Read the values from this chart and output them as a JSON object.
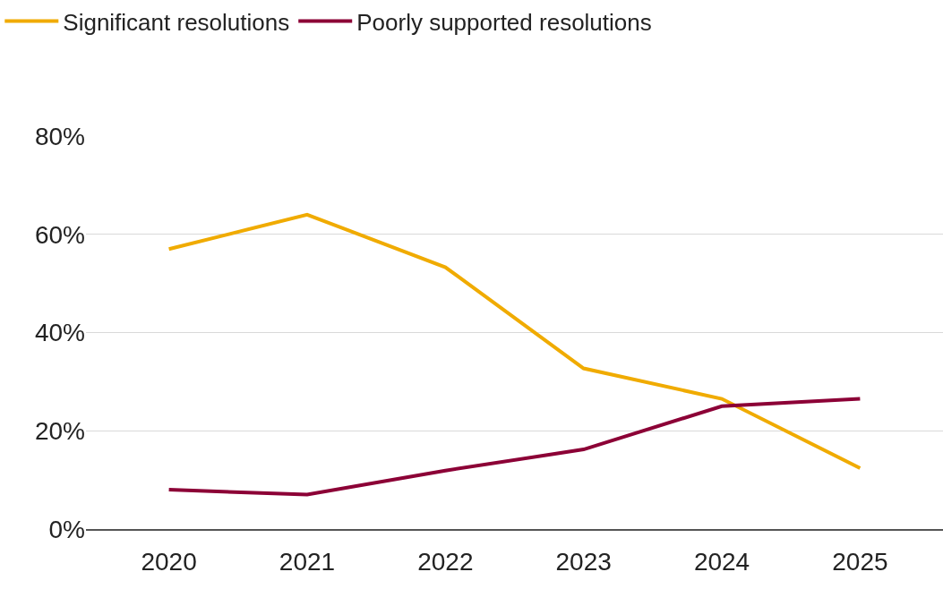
{
  "chart_data": {
    "type": "line",
    "categories": [
      "2020",
      "2021",
      "2022",
      "2023",
      "2024",
      "2025"
    ],
    "series": [
      {
        "name": "Significant resolutions",
        "color": "#f0ab00",
        "values": [
          57,
          64,
          53.3,
          32.7,
          26.5,
          12.4
        ]
      },
      {
        "name": "Poorly supported resolutions",
        "color": "#8c0036",
        "values": [
          8,
          7,
          11.9,
          16.2,
          25,
          26.5
        ]
      }
    ],
    "ylim": [
      0,
      80
    ],
    "yticks": [
      {
        "value": 0,
        "label": "0%"
      },
      {
        "value": 20,
        "label": "20%"
      },
      {
        "value": 40,
        "label": "40%"
      },
      {
        "value": 60,
        "label": "60%"
      },
      {
        "value": 80,
        "label": "80%"
      }
    ],
    "grid": "y",
    "legend": "top left",
    "marker": "none",
    "line_style": "solid"
  }
}
